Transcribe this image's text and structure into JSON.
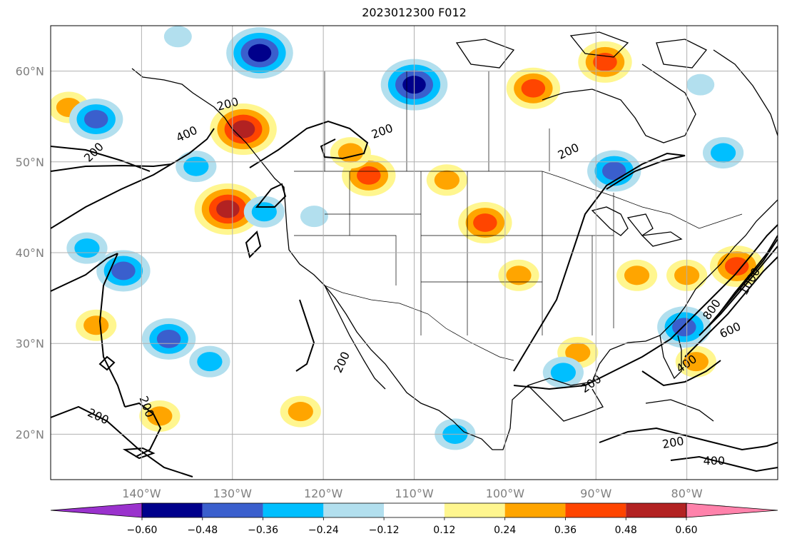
{
  "title": "2023012300 F012",
  "map": {
    "lon_range": [
      -150,
      -70
    ],
    "lat_range": [
      15,
      65
    ],
    "lon_ticks": [
      {
        "value": -140,
        "label": "140°W"
      },
      {
        "value": -130,
        "label": "130°W"
      },
      {
        "value": -120,
        "label": "120°W"
      },
      {
        "value": -110,
        "label": "110°W"
      },
      {
        "value": -100,
        "label": "100°W"
      },
      {
        "value": -90,
        "label": "90°W"
      },
      {
        "value": -80,
        "label": "80°W"
      }
    ],
    "lat_ticks": [
      {
        "value": 20,
        "label": "20°N"
      },
      {
        "value": 30,
        "label": "30°N"
      },
      {
        "value": 40,
        "label": "40°N"
      },
      {
        "value": 50,
        "label": "50°N"
      },
      {
        "value": 60,
        "label": "60°N"
      }
    ],
    "contour_labels": [
      {
        "text": "200",
        "lon": -130.5,
        "lat": 56.3,
        "rot": -15
      },
      {
        "text": "400",
        "lon": -135.0,
        "lat": 53.0,
        "rot": -25
      },
      {
        "text": "200",
        "lon": -145.2,
        "lat": 51.0,
        "rot": -45
      },
      {
        "text": "200",
        "lon": -113.5,
        "lat": 53.3,
        "rot": -20
      },
      {
        "text": "200",
        "lon": -93.0,
        "lat": 51.1,
        "rot": -25
      },
      {
        "text": "200",
        "lon": -117.9,
        "lat": 27.9,
        "rot": -65
      },
      {
        "text": "200",
        "lon": -144.8,
        "lat": 21.9,
        "rot": 25
      },
      {
        "text": "200",
        "lon": -139.5,
        "lat": 23.0,
        "rot": 70
      },
      {
        "text": "200",
        "lon": -90.5,
        "lat": 25.5,
        "rot": -35
      },
      {
        "text": "400",
        "lon": -80.0,
        "lat": 27.7,
        "rot": -35
      },
      {
        "text": "600",
        "lon": -75.2,
        "lat": 31.4,
        "rot": -25
      },
      {
        "text": "800",
        "lon": -77.2,
        "lat": 33.7,
        "rot": -55
      },
      {
        "text": "1000",
        "lon": -73.0,
        "lat": 36.8,
        "rot": -60
      },
      {
        "text": "200",
        "lon": -81.5,
        "lat": 19.0,
        "rot": -10
      },
      {
        "text": "400",
        "lon": -77.0,
        "lat": 17.0,
        "rot": 0
      }
    ],
    "anomaly_blobs": [
      {
        "lon": -128.8,
        "lat": 53.6,
        "sign": 1,
        "levels": 4
      },
      {
        "lon": -96.9,
        "lat": 58.1,
        "sign": 1,
        "levels": 3
      },
      {
        "lon": -102.2,
        "lat": 43.3,
        "sign": 1,
        "levels": 3
      },
      {
        "lon": -130.5,
        "lat": 44.8,
        "sign": 1,
        "levels": 4
      },
      {
        "lon": -74.5,
        "lat": 38.5,
        "sign": 1,
        "levels": 3
      },
      {
        "lon": -115.0,
        "lat": 48.5,
        "sign": 1,
        "levels": 3
      },
      {
        "lon": -106.4,
        "lat": 48.0,
        "sign": 1,
        "levels": 2
      },
      {
        "lon": -89.0,
        "lat": 61.0,
        "sign": 1,
        "levels": 3
      },
      {
        "lon": -80.0,
        "lat": 37.5,
        "sign": 1,
        "levels": 2
      },
      {
        "lon": -148.0,
        "lat": 56.0,
        "sign": 1,
        "levels": 2
      },
      {
        "lon": -145.0,
        "lat": 32.0,
        "sign": 1,
        "levels": 2
      },
      {
        "lon": -122.5,
        "lat": 22.5,
        "sign": 1,
        "levels": 2
      },
      {
        "lon": -138.0,
        "lat": 22.0,
        "sign": 1,
        "levels": 2
      },
      {
        "lon": -85.5,
        "lat": 37.5,
        "sign": 1,
        "levels": 2
      },
      {
        "lon": -98.5,
        "lat": 37.5,
        "sign": 1,
        "levels": 2
      },
      {
        "lon": -92.0,
        "lat": 29.0,
        "sign": 1,
        "levels": 2
      },
      {
        "lon": -79.0,
        "lat": 28.0,
        "sign": 1,
        "levels": 2
      },
      {
        "lon": -117.0,
        "lat": 51.0,
        "sign": 1,
        "levels": 2
      },
      {
        "lon": -127.0,
        "lat": 62.0,
        "sign": -1,
        "levels": 4
      },
      {
        "lon": -110.0,
        "lat": 58.5,
        "sign": -1,
        "levels": 4
      },
      {
        "lon": -145.0,
        "lat": 54.7,
        "sign": -1,
        "levels": 3
      },
      {
        "lon": -88.0,
        "lat": 49.0,
        "sign": -1,
        "levels": 3
      },
      {
        "lon": -76.0,
        "lat": 51.0,
        "sign": -1,
        "levels": 2
      },
      {
        "lon": -80.3,
        "lat": 31.8,
        "sign": -1,
        "levels": 3
      },
      {
        "lon": -142.0,
        "lat": 38.0,
        "sign": -1,
        "levels": 3
      },
      {
        "lon": -137.0,
        "lat": 30.5,
        "sign": -1,
        "levels": 3
      },
      {
        "lon": -126.5,
        "lat": 44.5,
        "sign": -1,
        "levels": 2
      },
      {
        "lon": -121.0,
        "lat": 44.0,
        "sign": -1,
        "levels": 1
      },
      {
        "lon": -134.0,
        "lat": 49.5,
        "sign": -1,
        "levels": 2
      },
      {
        "lon": -146.0,
        "lat": 40.5,
        "sign": -1,
        "levels": 2
      },
      {
        "lon": -132.5,
        "lat": 28.0,
        "sign": -1,
        "levels": 2
      },
      {
        "lon": -105.5,
        "lat": 20.0,
        "sign": -1,
        "levels": 2
      },
      {
        "lon": -93.6,
        "lat": 26.8,
        "sign": -1,
        "levels": 2
      },
      {
        "lon": -136.0,
        "lat": 63.8,
        "sign": -1,
        "levels": 1
      },
      {
        "lon": -78.5,
        "lat": 58.5,
        "sign": -1,
        "levels": 1
      }
    ]
  },
  "colorbar": {
    "colors": [
      "#9a32cd",
      "#00008b",
      "#3a5fcd",
      "#00bfff",
      "#b2dfee",
      "#ffffff",
      "#fff68f",
      "#ffa500",
      "#ff4500",
      "#b22222",
      "#ff82ab"
    ],
    "tick_labels": [
      "−0.60",
      "−0.48",
      "−0.36",
      "−0.24",
      "−0.12",
      "0.12",
      "0.24",
      "0.36",
      "0.48",
      "0.60"
    ]
  }
}
